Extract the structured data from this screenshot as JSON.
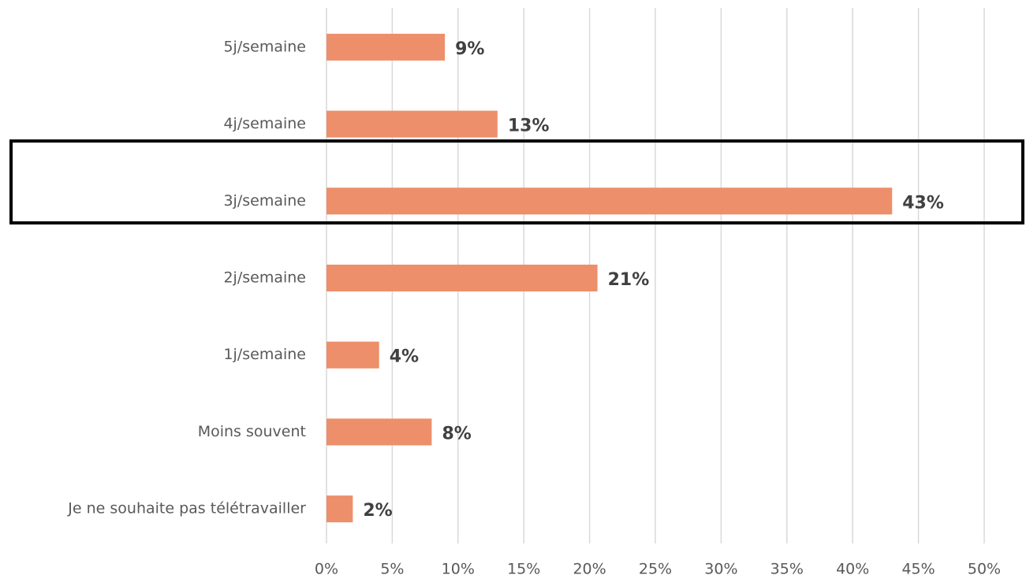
{
  "chart_data": {
    "type": "bar",
    "orientation": "horizontal",
    "categories": [
      "5j/semaine",
      "4j/semaine",
      "3j/semaine",
      "2j/semaine",
      "1j/semaine",
      "Moins souvent",
      "Je ne souhaite pas télétravailler"
    ],
    "values": [
      9,
      13,
      43,
      20.6,
      4,
      8,
      2
    ],
    "value_labels": [
      "9%",
      "13%",
      "43%",
      "21%",
      "4%",
      "8%",
      "2%"
    ],
    "color": "#ed8f6b",
    "xlim": [
      0,
      50
    ],
    "xticks": [
      {
        "value": 0,
        "label": "0%"
      },
      {
        "value": 5,
        "label": "5%"
      },
      {
        "value": 10,
        "label": "10%"
      },
      {
        "value": 15,
        "label": "15%"
      },
      {
        "value": 20,
        "label": "20%"
      },
      {
        "value": 25,
        "label": "25%"
      },
      {
        "value": 30,
        "label": "30%"
      },
      {
        "value": 35,
        "label": "35%"
      },
      {
        "value": 40,
        "label": "40%"
      },
      {
        "value": 45,
        "label": "45%"
      },
      {
        "value": 50,
        "label": "50%"
      }
    ],
    "grid": true
  }
}
